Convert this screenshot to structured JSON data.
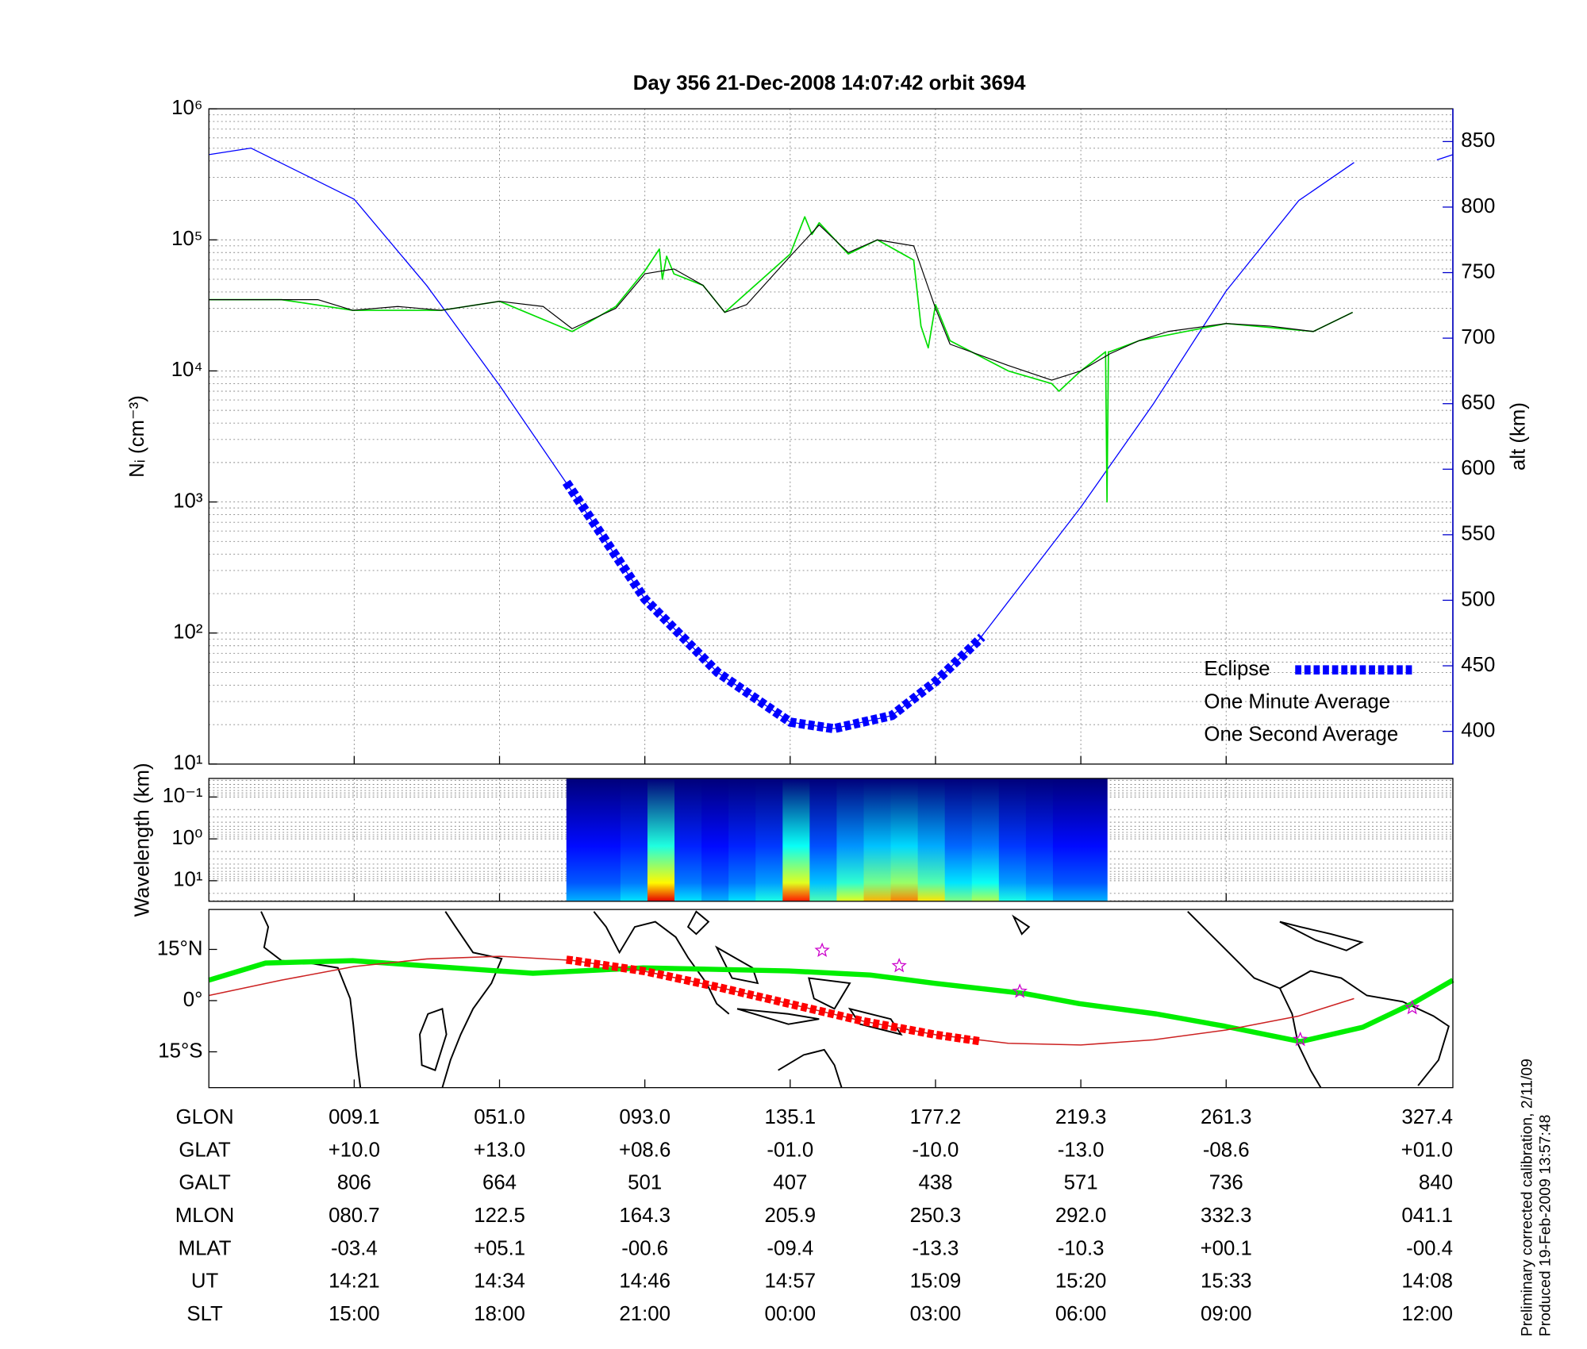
{
  "chart_data": [
    {
      "type": "line",
      "title": "Day 356  21-Dec-2008 14:07:42   orbit 3694",
      "ylabel": "Nᵢ (cm⁻³)",
      "y2label": "alt (km)",
      "xlim": [
        0,
        8.56
      ],
      "xticks": [
        1,
        2,
        3,
        4,
        5,
        6,
        7
      ],
      "ylim": [
        10,
        1000000
      ],
      "log": true,
      "yticks": [
        {
          "value": 10,
          "label": "10¹"
        },
        {
          "value": 100,
          "label": "10²"
        },
        {
          "value": 1000,
          "label": "10³"
        },
        {
          "value": 10000,
          "label": "10⁴"
        },
        {
          "value": 100000,
          "label": "10⁵"
        },
        {
          "value": 1000000,
          "label": "10⁶"
        }
      ],
      "y2lim": [
        375,
        875
      ],
      "y2ticks": [
        400,
        450,
        500,
        550,
        600,
        650,
        700,
        750,
        800,
        850
      ],
      "y2color": "#0000cc",
      "grid": true,
      "legend": "lower right",
      "series": [
        {
          "name": "Eclipse",
          "color": "#0000ff",
          "axis": "y2",
          "dashed": true,
          "x": [
            2.46,
            3,
            3.5,
            4,
            4.3,
            4.7,
            5,
            5.32
          ],
          "values": [
            590,
            501,
            445,
            407,
            402,
            412,
            438,
            472
          ]
        },
        {
          "name": "One Minute Average",
          "color": "#000000",
          "x": [
            0,
            0.5,
            0.75,
            0.99,
            1.3,
            1.6,
            2.0,
            2.3,
            2.5,
            2.8,
            3.0,
            3.2,
            3.4,
            3.55,
            3.7,
            4.0,
            4.2,
            4.4,
            4.6,
            4.85,
            5.0,
            5.1,
            5.5,
            5.8,
            6.0,
            6.2,
            6.4,
            6.6,
            7.0,
            7.3,
            7.6,
            7.87
          ],
          "values": [
            35000,
            35000,
            35000,
            29000,
            31000,
            29000,
            34000,
            31000,
            21000,
            30000,
            55000,
            60000,
            45000,
            28000,
            32000,
            75000,
            130000,
            80000,
            100000,
            90000,
            30000,
            16000,
            11000,
            8500,
            10000,
            13500,
            17000,
            20000,
            23000,
            22000,
            20000,
            28000
          ]
        },
        {
          "name": "One Second Average",
          "color": "#00dd00",
          "x": [
            0,
            0.5,
            0.99,
            1.6,
            2.0,
            2.5,
            2.6,
            2.8,
            3.0,
            3.1,
            3.12,
            3.15,
            3.2,
            3.4,
            3.55,
            4.0,
            4.1,
            4.15,
            4.2,
            4.4,
            4.6,
            4.85,
            4.9,
            4.95,
            5.0,
            5.1,
            5.5,
            5.8,
            5.85,
            6.0,
            6.17,
            6.18,
            6.19,
            6.2,
            6.4,
            7.0,
            7.6,
            7.87
          ],
          "values": [
            35000,
            35000,
            29000,
            29000,
            34000,
            20000,
            23000,
            31000,
            58000,
            85000,
            50000,
            75000,
            55000,
            45000,
            28000,
            78000,
            150000,
            110000,
            135000,
            78000,
            100000,
            70000,
            22000,
            15000,
            32000,
            17000,
            10000,
            8000,
            7000,
            10000,
            14000,
            1000,
            14000,
            14000,
            17000,
            23000,
            20000,
            28000
          ]
        },
        {
          "color": "#0000ff",
          "axis": "y2",
          "x": [
            0,
            0.29,
            1,
            1.5,
            2,
            2.5,
            3,
            3.5,
            4,
            4.3,
            4.7,
            5,
            5.3,
            6,
            6.5,
            7,
            7.5,
            7.88,
            8.0,
            8.45,
            8.56
          ],
          "values": [
            840,
            845,
            806,
            740,
            664,
            583,
            501,
            445,
            407,
            402,
            412,
            438,
            470,
            571,
            650,
            736,
            805,
            834,
            null,
            836,
            840
          ]
        }
      ]
    },
    {
      "type": "heatmap",
      "ylabel": "Wavelength (km)",
      "xlim": [
        0,
        8.56
      ],
      "xticks": [
        1,
        2,
        3,
        4,
        5,
        6,
        7
      ],
      "ylim": [
        31,
        0.036
      ],
      "log": true,
      "grid": true,
      "colormap": "jet",
      "yticks": [
        {
          "value": 0.1,
          "label": "10⁻¹"
        },
        {
          "value": 1,
          "label": "10⁰"
        },
        {
          "value": 10,
          "label": "10¹"
        }
      ],
      "x_edges": [
        2.46,
        2.646,
        2.832,
        3.018,
        3.204,
        3.39,
        3.576,
        3.762,
        3.948,
        4.134,
        4.32,
        4.506,
        4.692,
        4.878,
        5.064,
        5.25,
        5.436,
        5.622,
        5.808,
        5.994,
        6.18
      ],
      "intensity": [
        0.3,
        0.3,
        0.35,
        0.9,
        0.35,
        0.3,
        0.35,
        0.4,
        0.85,
        0.45,
        0.6,
        0.7,
        0.75,
        0.65,
        0.5,
        0.55,
        0.4,
        0.35,
        0.3,
        0.3
      ]
    },
    {
      "type": "line",
      "xlim": [
        0,
        8.56
      ],
      "xticks": [
        1,
        2,
        3,
        4,
        5,
        6,
        7
      ],
      "ylim": [
        -25.5,
        26.7
      ],
      "grid": false,
      "yticks": [
        {
          "value": 15,
          "label": "15°N"
        },
        {
          "value": 0,
          "label": "0°"
        },
        {
          "value": -15,
          "label": "15°S"
        }
      ],
      "series": [
        {
          "color": "#cc2222",
          "x": [
            0,
            0.5,
            1,
            1.5,
            2,
            2.5,
            3,
            3.5,
            4,
            4.5,
            5,
            5.5,
            6,
            6.5,
            7,
            7.5,
            7.88
          ],
          "values": [
            1.5,
            6,
            10,
            12.2,
            13,
            11.8,
            8.6,
            4,
            -1,
            -6,
            -10,
            -12.5,
            -13,
            -11.5,
            -8.6,
            -4.5,
            0.6
          ]
        },
        {
          "color": "#ff0000",
          "dashed": true,
          "x": [
            2.46,
            2.5,
            3,
            3.5,
            4,
            4.5,
            5,
            5.32
          ],
          "values": [
            12,
            11.8,
            8.6,
            4,
            -1,
            -6,
            -10,
            -12
          ]
        },
        {
          "color": "#00ee00",
          "x": [
            0,
            0.39,
            0.99,
            1.99,
            2.23,
            2.99,
            3.99,
            4.55,
            4.99,
            5.61,
            5.99,
            6.52,
            6.99,
            7.51,
            7.94,
            8.28,
            8.56
          ],
          "values": [
            6,
            11,
            11.7,
            8.7,
            8,
            9.6,
            8.7,
            7.5,
            5.1,
            2.1,
            -0.9,
            -3.9,
            -7.5,
            -12,
            -7.8,
            -0.9,
            6
          ]
        },
        {
          "color": "#cc00cc",
          "marker": "star",
          "x": [
            4.22,
            4.75,
            5.58,
            7.51,
            8.28
          ],
          "values": [
            14.7,
            10.2,
            2.7,
            -11.4,
            -2.1
          ]
        }
      ]
    }
  ],
  "table": {
    "rows": [
      [
        "GLON",
        "009.1",
        "051.0",
        "093.0",
        "135.1",
        "177.2",
        "219.3",
        "261.3",
        "327.4"
      ],
      [
        "GLAT",
        "+10.0",
        "+13.0",
        "+08.6",
        "-01.0",
        "-10.0",
        "-13.0",
        "-08.6",
        "+01.0"
      ],
      [
        "GALT",
        "806",
        "664",
        "501",
        "407",
        "438",
        "571",
        "736",
        "840"
      ],
      [
        "MLON",
        "080.7",
        "122.5",
        "164.3",
        "205.9",
        "250.3",
        "292.0",
        "332.3",
        "041.1"
      ],
      [
        "MLAT",
        "-03.4",
        "+05.1",
        "-00.6",
        "-09.4",
        "-13.3",
        "-10.3",
        "+00.1",
        "-00.4"
      ],
      [
        "UT",
        "14:21",
        "14:34",
        "14:46",
        "14:57",
        "15:09",
        "15:20",
        "15:33",
        "14:08"
      ],
      [
        "SLT",
        "15:00",
        "18:00",
        "21:00",
        "00:00",
        "03:00",
        "06:00",
        "09:00",
        "12:00"
      ]
    ]
  },
  "footer": [
    "Preliminary corrected calibration, 2/11/09",
    "Produced 19-Feb-2009 13:57:48"
  ]
}
